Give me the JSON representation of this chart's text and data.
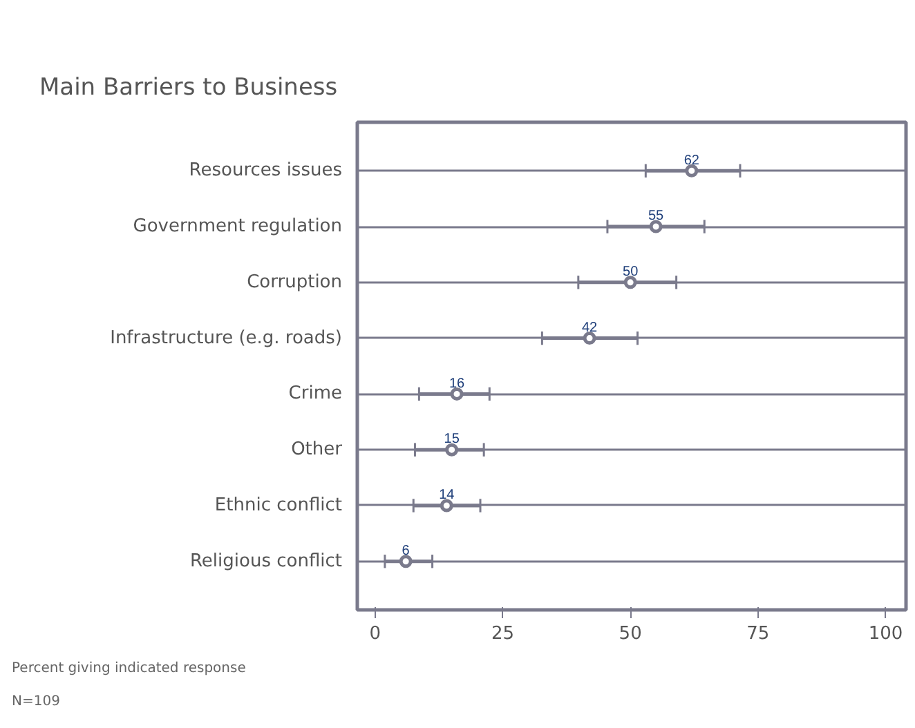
{
  "chart_data": {
    "type": "scatter",
    "orientation": "horizontal",
    "title": "Main Barriers to Business",
    "categories": [
      "Resources issues",
      "Government regulation",
      "Corruption",
      "Infrastructure (e.g. roads)",
      "Crime",
      "Other",
      "Ethnic conflict",
      "Religious conflict"
    ],
    "values": [
      62,
      55,
      50,
      42,
      16,
      15,
      14,
      6
    ],
    "errors": [
      [
        53,
        71.5
      ],
      [
        45.5,
        64.5
      ],
      [
        39.8,
        59
      ],
      [
        32.7,
        51.4
      ],
      [
        8.6,
        22.4
      ],
      [
        7.8,
        21.3
      ],
      [
        7.5,
        20.6
      ],
      [
        1.9,
        11.2
      ]
    ],
    "color": "#7a7a8c",
    "data_labels": true,
    "marker": "circle",
    "grid": "y",
    "xlim": [
      -3.5,
      104
    ],
    "xticks": [
      0,
      25,
      50,
      75,
      100
    ],
    "annotations": [
      "Percent giving indicated response",
      "N=109"
    ]
  }
}
